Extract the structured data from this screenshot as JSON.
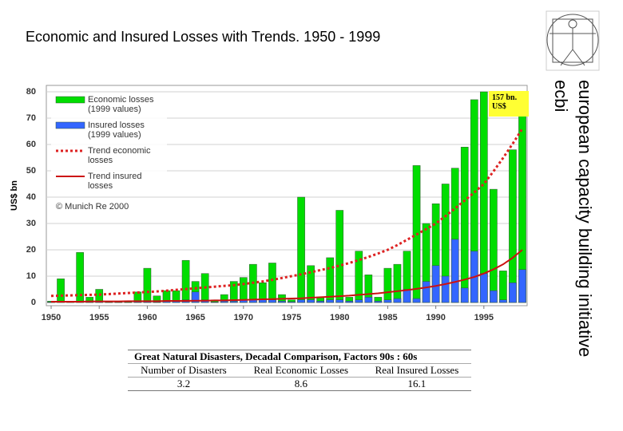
{
  "title": "Economic and Insured Losses with Trends. 1950 - 1999",
  "side_text": [
    "european capacity building initiative",
    "ecbi"
  ],
  "chart_data": {
    "type": "bar",
    "y_label": "US$ bn",
    "x": [
      1950,
      1951,
      1952,
      1953,
      1954,
      1955,
      1956,
      1957,
      1958,
      1959,
      1960,
      1961,
      1962,
      1963,
      1964,
      1965,
      1966,
      1967,
      1968,
      1969,
      1970,
      1971,
      1972,
      1973,
      1974,
      1975,
      1976,
      1977,
      1978,
      1979,
      1980,
      1981,
      1982,
      1983,
      1984,
      1985,
      1986,
      1987,
      1988,
      1989,
      1990,
      1991,
      1992,
      1993,
      1994,
      1995,
      1996,
      1997,
      1998,
      1999
    ],
    "xlim": [
      1949.5,
      1999.5
    ],
    "xticks": [
      1950,
      1955,
      1960,
      1965,
      1970,
      1975,
      1980,
      1985,
      1990,
      1995
    ],
    "ylim": [
      0,
      80
    ],
    "yticks": [
      0,
      10,
      20,
      30,
      40,
      50,
      60,
      70,
      80
    ],
    "grid": true,
    "series": [
      {
        "name": "Economic losses (1999 values)",
        "type": "bar",
        "color": "#00dd00",
        "values": [
          0.5,
          9,
          0.5,
          19,
          2,
          5,
          0.5,
          0.5,
          0.5,
          4,
          13,
          2.5,
          4.5,
          4.5,
          16,
          8,
          11,
          1,
          3,
          8,
          9.5,
          14.5,
          7.5,
          15,
          3,
          1,
          40,
          14,
          2,
          17,
          35,
          2,
          19.5,
          10.5,
          2,
          13,
          14.5,
          19.5,
          52,
          30,
          37.5,
          45,
          51,
          59,
          77,
          80,
          43,
          12,
          58,
          71
        ]
      },
      {
        "name": "Insured losses (1999 values)",
        "type": "bar",
        "color": "#3366ff",
        "values": [
          0.2,
          0.5,
          0.1,
          0.5,
          0.2,
          0.3,
          0.1,
          0.1,
          0.1,
          0.3,
          0.5,
          0.2,
          0.5,
          0.5,
          1,
          4,
          1,
          0.2,
          0.5,
          0.5,
          1,
          1,
          1,
          1,
          0.5,
          0.3,
          1,
          1,
          0.5,
          1,
          1,
          0.5,
          1,
          2,
          0.5,
          1,
          1.5,
          5,
          1.5,
          8,
          14,
          10,
          24,
          5.5,
          19.5,
          11,
          4.5,
          1,
          7.5,
          12.5
        ]
      },
      {
        "name": "Trend economic losses",
        "type": "line",
        "dashed": true,
        "color": "#dd2222",
        "values": [
          2.5,
          2.6,
          2.7,
          2.8,
          2.9,
          3.0,
          3.2,
          3.4,
          3.6,
          3.8,
          4.0,
          4.2,
          4.5,
          4.8,
          5.1,
          5.4,
          5.7,
          6.0,
          6.3,
          6.6,
          7.0,
          7.5,
          8.0,
          8.6,
          9.3,
          10.0,
          10.7,
          11.5,
          12.3,
          13.1,
          14.0,
          15.0,
          16.1,
          17.3,
          18.6,
          20.0,
          21.8,
          23.8,
          25.8,
          27.9,
          30,
          32.8,
          35.7,
          38.7,
          41.8,
          45,
          49.8,
          54.9,
          60.3,
          66
        ]
      },
      {
        "name": "Trend insured losses",
        "type": "line",
        "dashed": false,
        "color": "#cc1111",
        "values": [
          0.3,
          0.3,
          0.3,
          0.3,
          0.4,
          0.4,
          0.4,
          0.4,
          0.5,
          0.5,
          0.5,
          0.5,
          0.6,
          0.6,
          0.6,
          0.7,
          0.7,
          0.8,
          0.8,
          0.9,
          1.0,
          1.1,
          1.2,
          1.3,
          1.4,
          1.5,
          1.6,
          1.8,
          2.0,
          2.2,
          2.4,
          2.6,
          2.9,
          3.2,
          3.5,
          3.9,
          4.3,
          4.7,
          5.2,
          5.7,
          6.3,
          7.0,
          7.8,
          8.7,
          9.7,
          11,
          12.6,
          14.5,
          17,
          20
        ]
      }
    ],
    "annotations": [
      "© Munich Re 2000"
    ],
    "callout": [
      "157 bn.",
      "US$"
    ]
  },
  "table": {
    "title": "Great Natural Disasters, Decadal Comparison, Factors 90s : 60s",
    "header": [
      "Number of Disasters",
      "Real Economic Losses",
      "Real Insured Losses"
    ],
    "row": [
      "3.2",
      "8.6",
      "16.1"
    ]
  }
}
